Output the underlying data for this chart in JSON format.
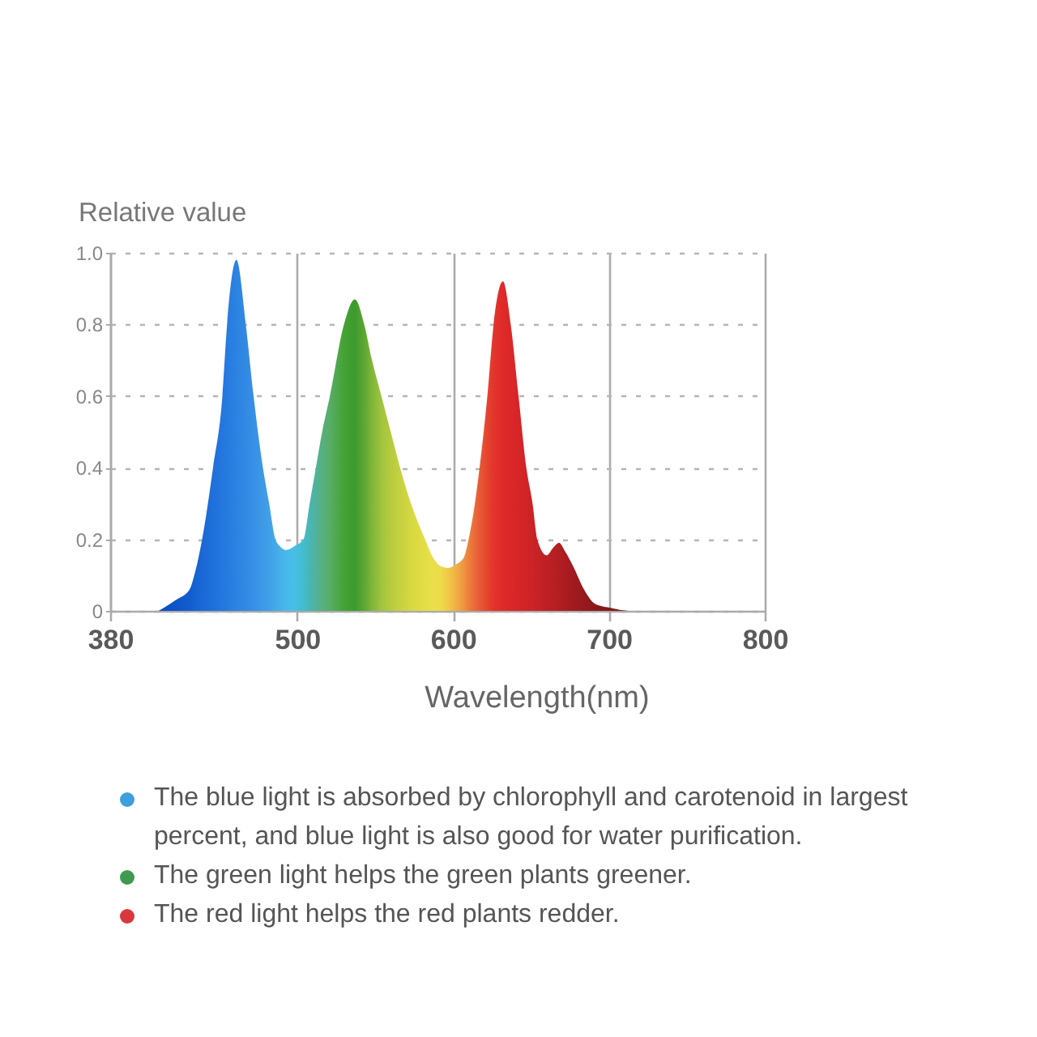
{
  "chart_data": {
    "type": "area",
    "ylabel": "Relative value",
    "xlabel": "Wavelength(nm)",
    "x": [
      411,
      422,
      431,
      434,
      439,
      446,
      452,
      455,
      461,
      467,
      472,
      478,
      482,
      486,
      489,
      493,
      498,
      504,
      508,
      512,
      516,
      521,
      530,
      537,
      543,
      548,
      554,
      560,
      566,
      573,
      582,
      587,
      592,
      597,
      602,
      607,
      610,
      614,
      617,
      622,
      626,
      632,
      637,
      642,
      647,
      651,
      654,
      660,
      664,
      668,
      672,
      677,
      684,
      691,
      699,
      715,
      732
    ],
    "values": [
      0,
      0.03,
      0.06,
      0.1,
      0.2,
      0.4,
      0.6,
      0.8,
      0.98,
      0.8,
      0.6,
      0.4,
      0.3,
      0.2,
      0.18,
      0.17,
      0.18,
      0.2,
      0.3,
      0.4,
      0.5,
      0.6,
      0.8,
      0.87,
      0.8,
      0.7,
      0.6,
      0.5,
      0.4,
      0.3,
      0.2,
      0.15,
      0.125,
      0.12,
      0.13,
      0.15,
      0.2,
      0.3,
      0.4,
      0.6,
      0.8,
      0.92,
      0.8,
      0.6,
      0.4,
      0.3,
      0.2,
      0.155,
      0.175,
      0.19,
      0.165,
      0.125,
      0.06,
      0.02,
      0.01,
      0,
      0
    ],
    "colors": [
      "#0a4fc4",
      "#0d55c8",
      "#125dce",
      "#1561d1",
      "#1a68d6",
      "#1f70da",
      "#2477dd",
      "#277bdf",
      "#2c83e2",
      "#3189e3",
      "#3790e5",
      "#3d99e6",
      "#41a0e8",
      "#44a9e9",
      "#46b0ea",
      "#47b9ea",
      "#46bfe6",
      "#43bccf",
      "#48b6b4",
      "#50b29a",
      "#57b080",
      "#58ad66",
      "#45a234",
      "#3c9a2e",
      "#5ea732",
      "#80b639",
      "#a0c43e",
      "#b6cb3e",
      "#c6d140",
      "#d6d842",
      "#e4de46",
      "#eadf4a",
      "#eedb4a",
      "#f0c848",
      "#f0b044",
      "#ee9440",
      "#ec803c",
      "#ea6a3a",
      "#e85a37",
      "#e5442f",
      "#e2352c",
      "#df2a29",
      "#db2728",
      "#d62527",
      "#d02427",
      "#cb2326",
      "#c62226",
      "#bd2026",
      "#b81f24",
      "#b21e22",
      "#ab1c21",
      "#a01b1f",
      "#961a1d",
      "#8c191b",
      "#84191a",
      "#7e1a1a",
      "#7a1a1a"
    ],
    "xlim": [
      380,
      800
    ],
    "xticks": [
      380,
      500,
      600,
      700,
      800
    ],
    "ylim": [
      0,
      1
    ],
    "yticks": [
      0,
      0.2,
      0.4,
      0.6,
      0.8,
      {
        "value": 1,
        "label": "1.0"
      }
    ],
    "grid": true,
    "annotations": [
      "The blue light is absorbed by chlorophyll and carotenoid in largest percent, and blue light is also good for water purification.",
      "The green light helps the green plants greener.",
      "The red light helps the red plants redder."
    ]
  }
}
